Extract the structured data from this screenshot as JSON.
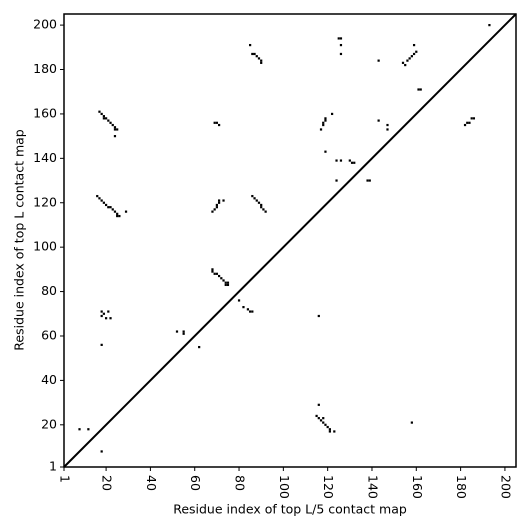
{
  "chart_data": {
    "type": "scatter",
    "xlabel": "Residue index of top L/5 contact map",
    "ylabel": "Residue index of top L contact map",
    "x": [
      17,
      18,
      19,
      19,
      20,
      21,
      22,
      23,
      24,
      24,
      25,
      24,
      16,
      17,
      18,
      19,
      20,
      21,
      22,
      23,
      24,
      25,
      26,
      25,
      29,
      18,
      18,
      19,
      20,
      21,
      22,
      18,
      52,
      55,
      55,
      62,
      68,
      68,
      69,
      70,
      71,
      72,
      73,
      74,
      75,
      75,
      74,
      68,
      69,
      70,
      70,
      71,
      71,
      73,
      69,
      70,
      71,
      86,
      87,
      88,
      89,
      90,
      90,
      91,
      92,
      80,
      82,
      84,
      86,
      85,
      85,
      86,
      87,
      88,
      89,
      90,
      90,
      116,
      118,
      119,
      119,
      118,
      117,
      122,
      119,
      125,
      126,
      126,
      126,
      124,
      126,
      130,
      131,
      132,
      124,
      138,
      139,
      143,
      143,
      147,
      147,
      154,
      155,
      156,
      157,
      158,
      159,
      160,
      159,
      161,
      162,
      182,
      183,
      184,
      185,
      186,
      193,
      8,
      12,
      18,
      116,
      115,
      116,
      117,
      118,
      118,
      119,
      120,
      121,
      121,
      123,
      158
    ],
    "values": [
      161,
      160,
      159,
      158,
      158,
      157,
      156,
      155,
      154,
      153,
      153,
      150,
      123,
      122,
      121,
      120,
      119,
      118,
      118,
      117,
      116,
      115,
      114,
      114,
      116,
      71,
      69,
      70,
      68,
      71,
      68,
      56,
      62,
      61,
      62,
      55,
      90,
      89,
      88,
      88,
      87,
      86,
      85,
      84,
      83,
      84,
      83,
      116,
      117,
      118,
      119,
      120,
      121,
      121,
      156,
      156,
      155,
      123,
      122,
      121,
      120,
      119,
      118,
      117,
      116,
      76,
      73,
      72,
      71,
      71,
      191,
      187,
      187,
      186,
      185,
      184,
      183,
      69,
      156,
      157,
      158,
      155,
      153,
      160,
      143,
      194,
      194,
      191,
      187,
      139,
      139,
      139,
      138,
      138,
      130,
      130,
      130,
      184,
      157,
      155,
      153,
      183,
      182,
      184,
      185,
      186,
      187,
      188,
      191,
      171,
      171,
      155,
      156,
      156,
      158,
      158,
      200,
      18,
      18,
      8,
      29,
      24,
      23,
      22,
      21,
      23,
      20,
      19,
      18,
      17,
      17,
      21
    ],
    "color": "#000000",
    "marker": "square",
    "diagonal": true,
    "xlim": [
      1,
      205
    ],
    "ylim": [
      1,
      205
    ],
    "xticks": [
      1,
      20,
      40,
      60,
      80,
      100,
      120,
      140,
      160,
      180,
      200
    ],
    "yticks": [
      1,
      20,
      40,
      60,
      80,
      100,
      120,
      140,
      160,
      180,
      200
    ]
  }
}
